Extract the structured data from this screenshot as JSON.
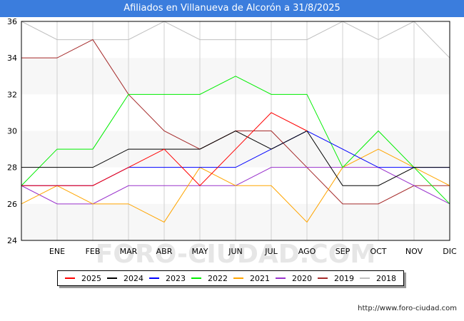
{
  "chart_data": {
    "type": "line",
    "title": "Afiliados en Villanueva de Alcorón a 31/8/2025",
    "categories": [
      "",
      "ENE",
      "FEB",
      "MAR",
      "ABR",
      "MAY",
      "JUN",
      "JUL",
      "AGO",
      "SEP",
      "OCT",
      "NOV",
      "DIC"
    ],
    "ylim": [
      24,
      36
    ],
    "yticks": [
      24,
      26,
      28,
      30,
      32,
      34,
      36
    ],
    "ytick_labels": [
      "24",
      "26",
      "28",
      "30",
      "32",
      "34",
      "36"
    ],
    "watermark": "FORO-CIUDAD.COM",
    "series": [
      {
        "name": "2025",
        "color": "#ff0000",
        "values": [
          27,
          27,
          27,
          28,
          29,
          27,
          29,
          31,
          30,
          null,
          null,
          null,
          null
        ]
      },
      {
        "name": "2024",
        "color": "#000000",
        "values": [
          28,
          28,
          28,
          29,
          29,
          29,
          30,
          29,
          30,
          27,
          27,
          28,
          28
        ]
      },
      {
        "name": "2023",
        "color": "#0000ff",
        "values": [
          27,
          27,
          27,
          28,
          28,
          28,
          28,
          29,
          30,
          29,
          28,
          28,
          28
        ]
      },
      {
        "name": "2022",
        "color": "#00ee00",
        "values": [
          27,
          29,
          29,
          32,
          32,
          32,
          33,
          32,
          32,
          28,
          30,
          28,
          26
        ]
      },
      {
        "name": "2021",
        "color": "#ffa500",
        "values": [
          26,
          27,
          26,
          26,
          25,
          28,
          27,
          27,
          25,
          28,
          29,
          28,
          27
        ]
      },
      {
        "name": "2020",
        "color": "#9932cc",
        "values": [
          27,
          26,
          26,
          27,
          27,
          27,
          27,
          28,
          28,
          28,
          28,
          27,
          26
        ]
      },
      {
        "name": "2019",
        "color": "#a52a2a",
        "values": [
          34,
          34,
          35,
          32,
          30,
          29,
          30,
          30,
          28,
          26,
          26,
          27,
          27
        ]
      },
      {
        "name": "2018",
        "color": "#c0c0c0",
        "values": [
          36,
          35,
          35,
          35,
          36,
          35,
          35,
          35,
          35,
          36,
          35,
          36,
          34
        ]
      }
    ]
  },
  "footer": {
    "source": "http://www.foro-ciudad.com"
  }
}
